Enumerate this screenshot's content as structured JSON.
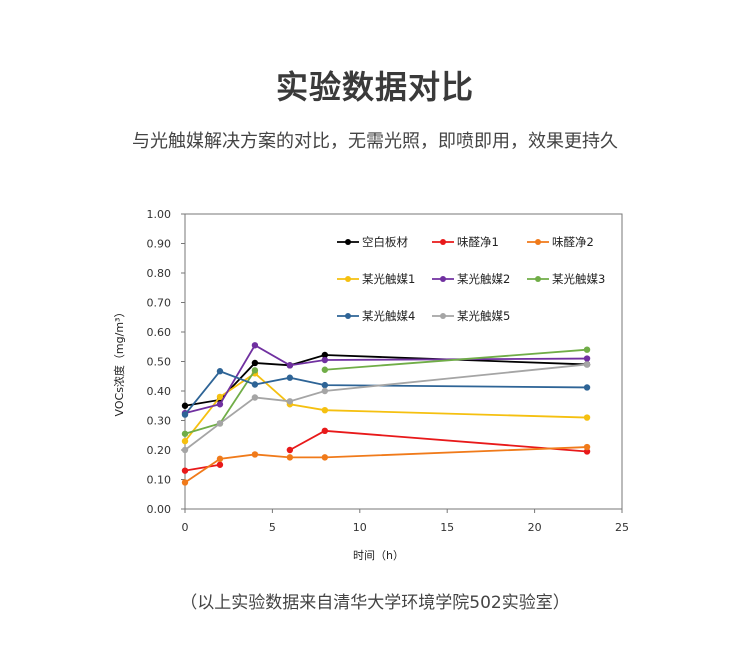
{
  "header": {
    "title": "实验数据对比",
    "subtitle": "与光触媒解决方案的对比，无需光照，即喷即用，效果更持久"
  },
  "footer": {
    "note": "（以上实验数据来自清华大学环境学院502实验室）"
  },
  "chart_data": {
    "type": "line",
    "title": "",
    "xlabel": "时间（h）",
    "ylabel": "VOCs浓度（mg/m³）",
    "xlim": [
      0,
      25
    ],
    "ylim": [
      0,
      1
    ],
    "xticks": [
      "0",
      "5",
      "10",
      "15",
      "20",
      "25"
    ],
    "yticks": [
      "0.00",
      "0.10",
      "0.20",
      "0.30",
      "0.40",
      "0.50",
      "0.60",
      "0.70",
      "0.80",
      "0.90",
      "1.00"
    ],
    "x": [
      0,
      2,
      4,
      6,
      8,
      23
    ],
    "legend_position": "top-right inside",
    "series": [
      {
        "name": "空白板材",
        "color": "#000000",
        "values": [
          0.35,
          0.37,
          0.495,
          0.487,
          0.522,
          0.49
        ]
      },
      {
        "name": "味醛净1",
        "color": "#e8191a",
        "values": [
          0.13,
          0.15,
          null,
          0.2,
          0.265,
          0.195
        ]
      },
      {
        "name": "味醛净2",
        "color": "#f07a1a",
        "values": [
          0.09,
          0.17,
          0.185,
          0.175,
          0.175,
          0.21
        ]
      },
      {
        "name": "某光触媒1",
        "color": "#f5c010",
        "values": [
          0.23,
          0.38,
          0.46,
          0.355,
          0.335,
          0.31
        ]
      },
      {
        "name": "某光触媒2",
        "color": "#7030a0",
        "values": [
          0.325,
          0.355,
          0.555,
          0.487,
          0.505,
          0.51
        ]
      },
      {
        "name": "某光触媒3",
        "color": "#70ad47",
        "values": [
          0.255,
          0.29,
          0.47,
          null,
          0.472,
          0.54
        ]
      },
      {
        "name": "某光触媒4",
        "color": "#2e6496",
        "values": [
          0.32,
          0.467,
          0.422,
          0.445,
          0.42,
          0.412
        ]
      },
      {
        "name": "某光触媒5",
        "color": "#a5a5a5",
        "values": [
          0.2,
          0.29,
          0.378,
          0.365,
          0.4,
          0.49
        ]
      }
    ]
  }
}
